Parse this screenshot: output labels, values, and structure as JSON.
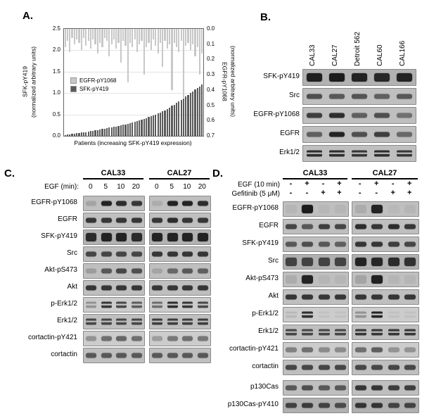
{
  "figure": {
    "panel_a": {
      "label": "A.",
      "chart_data": {
        "type": "bar",
        "title": "",
        "xlabel": "Patients (increasing SFK-pY419 expression)",
        "left_axis": {
          "label_line1": "SFK-pY419",
          "label_line2": "(normalized arbitrary units)",
          "ticks": [
            "0.0",
            "0.5",
            "1.0",
            "1.5",
            "2.0",
            "2.5"
          ],
          "range": [
            0,
            2.5
          ]
        },
        "right_axis": {
          "label_line1": "EGFR-pY1068",
          "label_line2": "(normalized arbitrary units)",
          "ticks": [
            "0.0",
            "0.1",
            "0.2",
            "0.3",
            "0.4",
            "0.5",
            "0.6",
            "0.7"
          ],
          "range": [
            0,
            0.7
          ],
          "inverted": true
        },
        "legend": [
          {
            "name": "EGFR-pY1068",
            "color": "#c8c8c8"
          },
          {
            "name": "SFK-pY419",
            "color": "#5a5a5a"
          }
        ],
        "series": [
          {
            "name": "EGFR-pY1068",
            "axis": "right",
            "direction": "down",
            "color": "#c8c8c8",
            "range": 0.7,
            "values": [
              0.12,
              0.08,
              0.15,
              0.06,
              0.1,
              0.07,
              0.09,
              0.14,
              0.06,
              0.11,
              0.08,
              0.13,
              0.07,
              0.1,
              0.16,
              0.09,
              0.12,
              0.06,
              0.08,
              0.18,
              0.1,
              0.07,
              0.13,
              0.09,
              0.22,
              0.08,
              0.11,
              0.35,
              0.09,
              0.12,
              0.07,
              0.15,
              0.1,
              0.08,
              0.3,
              0.12,
              0.09,
              0.14,
              0.07,
              0.11,
              0.16,
              0.09,
              0.25,
              0.08,
              0.13,
              0.1,
              0.4,
              0.09,
              0.12,
              0.15,
              0.08,
              0.45,
              0.11,
              0.09,
              0.14,
              0.1,
              0.18,
              0.12,
              0.3,
              0.16
            ]
          },
          {
            "name": "SFK-pY419",
            "axis": "left",
            "direction": "up",
            "color": "#5a5a5a",
            "range": 2.5,
            "values": [
              0.02,
              0.03,
              0.04,
              0.05,
              0.05,
              0.06,
              0.07,
              0.08,
              0.08,
              0.09,
              0.1,
              0.11,
              0.12,
              0.13,
              0.14,
              0.15,
              0.16,
              0.17,
              0.18,
              0.19,
              0.2,
              0.21,
              0.22,
              0.23,
              0.24,
              0.26,
              0.27,
              0.28,
              0.3,
              0.31,
              0.33,
              0.34,
              0.36,
              0.38,
              0.4,
              0.42,
              0.44,
              0.46,
              0.48,
              0.5,
              0.52,
              0.55,
              0.58,
              0.6,
              0.63,
              0.66,
              0.7,
              0.73,
              0.77,
              0.8,
              0.84,
              0.88,
              0.92,
              0.96,
              1.0,
              1.04,
              1.08,
              1.12,
              1.16,
              1.2
            ]
          }
        ]
      }
    },
    "panel_b": {
      "label": "B.",
      "lanes": [
        "CAL33",
        "CAL27",
        "Detroit 562",
        "CAL60",
        "CAL166"
      ],
      "rows": [
        {
          "label": "SFK-pY419",
          "thick": true,
          "bg": "#b2b2b2",
          "bands": [
            0.92,
            0.95,
            0.9,
            0.88,
            0.9
          ]
        },
        {
          "label": "Src",
          "bands": [
            0.65,
            0.6,
            0.62,
            0.55,
            0.6
          ]
        },
        {
          "label": "EGFR-pY1068",
          "bands": [
            0.75,
            0.85,
            0.55,
            0.65,
            0.45
          ]
        },
        {
          "label": "EGFR",
          "bands": [
            0.55,
            0.9,
            0.65,
            0.75,
            0.5
          ]
        },
        {
          "label": "Erk1/2",
          "double": true,
          "bands": [
            0.85,
            0.85,
            0.8,
            0.85,
            0.8
          ]
        }
      ]
    },
    "panel_c": {
      "label": "C.",
      "groups": [
        "CAL33",
        "CAL27"
      ],
      "condition_label": "EGF (min):",
      "lane_labels": [
        "0",
        "5",
        "10",
        "20"
      ],
      "rows": [
        {
          "label": "EGFR-pY1068",
          "groups": [
            [
              0.15,
              0.9,
              0.85,
              0.8
            ],
            [
              0.1,
              0.9,
              0.9,
              0.85
            ]
          ]
        },
        {
          "label": "EGFR",
          "groups": [
            [
              0.8,
              0.8,
              0.8,
              0.8
            ],
            [
              0.8,
              0.85,
              0.8,
              0.8
            ]
          ]
        },
        {
          "label": "SFK-pY419",
          "thick": true,
          "bg": "#b2b2b2",
          "groups": [
            [
              0.85,
              0.9,
              0.9,
              0.85
            ],
            [
              0.9,
              0.9,
              0.9,
              0.9
            ]
          ]
        },
        {
          "label": "Src",
          "groups": [
            [
              0.7,
              0.7,
              0.7,
              0.7
            ],
            [
              0.8,
              0.8,
              0.8,
              0.8
            ]
          ]
        },
        {
          "label": "Akt-pS473",
          "groups": [
            [
              0.2,
              0.6,
              0.7,
              0.65
            ],
            [
              0.15,
              0.5,
              0.6,
              0.55
            ]
          ]
        },
        {
          "label": "Akt",
          "groups": [
            [
              0.8,
              0.8,
              0.8,
              0.8
            ],
            [
              0.8,
              0.8,
              0.8,
              0.8
            ]
          ]
        },
        {
          "label": "p-Erk1/2",
          "double": true,
          "bg": "#cccccc",
          "groups": [
            [
              0.3,
              0.8,
              0.7,
              0.6
            ],
            [
              0.5,
              0.85,
              0.8,
              0.7
            ]
          ]
        },
        {
          "label": "Erk1/2",
          "double": true,
          "groups": [
            [
              0.7,
              0.7,
              0.7,
              0.7
            ],
            [
              0.75,
              0.75,
              0.75,
              0.75
            ]
          ]
        },
        {
          "label": "cortactin-pY421",
          "bg": "#cccccc",
          "groups": [
            [
              0.3,
              0.5,
              0.55,
              0.5
            ],
            [
              0.25,
              0.45,
              0.5,
              0.45
            ]
          ]
        },
        {
          "label": "cortactin",
          "groups": [
            [
              0.6,
              0.6,
              0.6,
              0.6
            ],
            [
              0.6,
              0.6,
              0.6,
              0.6
            ]
          ]
        }
      ]
    },
    "panel_d": {
      "label": "D.",
      "groups": [
        "CAL33",
        "CAL27"
      ],
      "conditions": [
        {
          "label": "EGF (10 min)",
          "values": [
            "-",
            "+",
            "-",
            "+"
          ]
        },
        {
          "label": "Gefitinib (5 μM)",
          "values": [
            "-",
            "-",
            "+",
            "+"
          ]
        }
      ],
      "rows": [
        {
          "label": "EGFR-pY1068",
          "thick": true,
          "groups": [
            [
              0.05,
              0.95,
              0.04,
              0.05
            ],
            [
              0.1,
              0.9,
              0.03,
              0.05
            ]
          ]
        },
        {
          "label": "EGFR",
          "groups": [
            [
              0.7,
              0.6,
              0.75,
              0.7
            ],
            [
              0.85,
              0.8,
              0.85,
              0.8
            ]
          ]
        },
        {
          "label": "SFK-pY419",
          "groups": [
            [
              0.6,
              0.65,
              0.6,
              0.55
            ],
            [
              0.8,
              0.8,
              0.75,
              0.7
            ]
          ]
        },
        {
          "label": "Src",
          "thick": true,
          "bg": "#b0b0b0",
          "groups": [
            [
              0.7,
              0.7,
              0.7,
              0.7
            ],
            [
              0.9,
              0.88,
              0.85,
              0.82
            ]
          ]
        },
        {
          "label": "Akt-pS473",
          "thick": true,
          "groups": [
            [
              0.1,
              0.9,
              0.05,
              0.05
            ],
            [
              0.15,
              0.92,
              0.05,
              0.05
            ]
          ]
        },
        {
          "label": "Akt",
          "groups": [
            [
              0.8,
              0.8,
              0.8,
              0.8
            ],
            [
              0.8,
              0.8,
              0.8,
              0.8
            ]
          ]
        },
        {
          "label": "p-Erk1/2",
          "double": true,
          "bg": "#cccccc",
          "groups": [
            [
              0.1,
              0.85,
              0.05,
              0.05
            ],
            [
              0.3,
              0.9,
              0.05,
              0.05
            ]
          ]
        },
        {
          "label": "Erk1/2",
          "double": true,
          "groups": [
            [
              0.7,
              0.7,
              0.7,
              0.7
            ],
            [
              0.8,
              0.8,
              0.8,
              0.8
            ]
          ]
        },
        {
          "label": "cortactin-pY421",
          "bg": "#cccccc",
          "groups": [
            [
              0.4,
              0.5,
              0.35,
              0.35
            ],
            [
              0.5,
              0.6,
              0.3,
              0.3
            ]
          ]
        },
        {
          "label": "cortactin",
          "groups": [
            [
              0.7,
              0.7,
              0.7,
              0.7
            ],
            [
              0.7,
              0.7,
              0.7,
              0.7
            ]
          ]
        },
        {
          "label": "p130Cas",
          "groups": [
            [
              0.6,
              0.65,
              0.6,
              0.6
            ],
            [
              0.8,
              0.8,
              0.75,
              0.75
            ]
          ]
        },
        {
          "label": "p130Cas-pY410",
          "bg": "#b0b0b0",
          "groups": [
            [
              0.7,
              0.75,
              0.7,
              0.65
            ],
            [
              0.8,
              0.8,
              0.7,
              0.7
            ]
          ]
        }
      ]
    }
  }
}
